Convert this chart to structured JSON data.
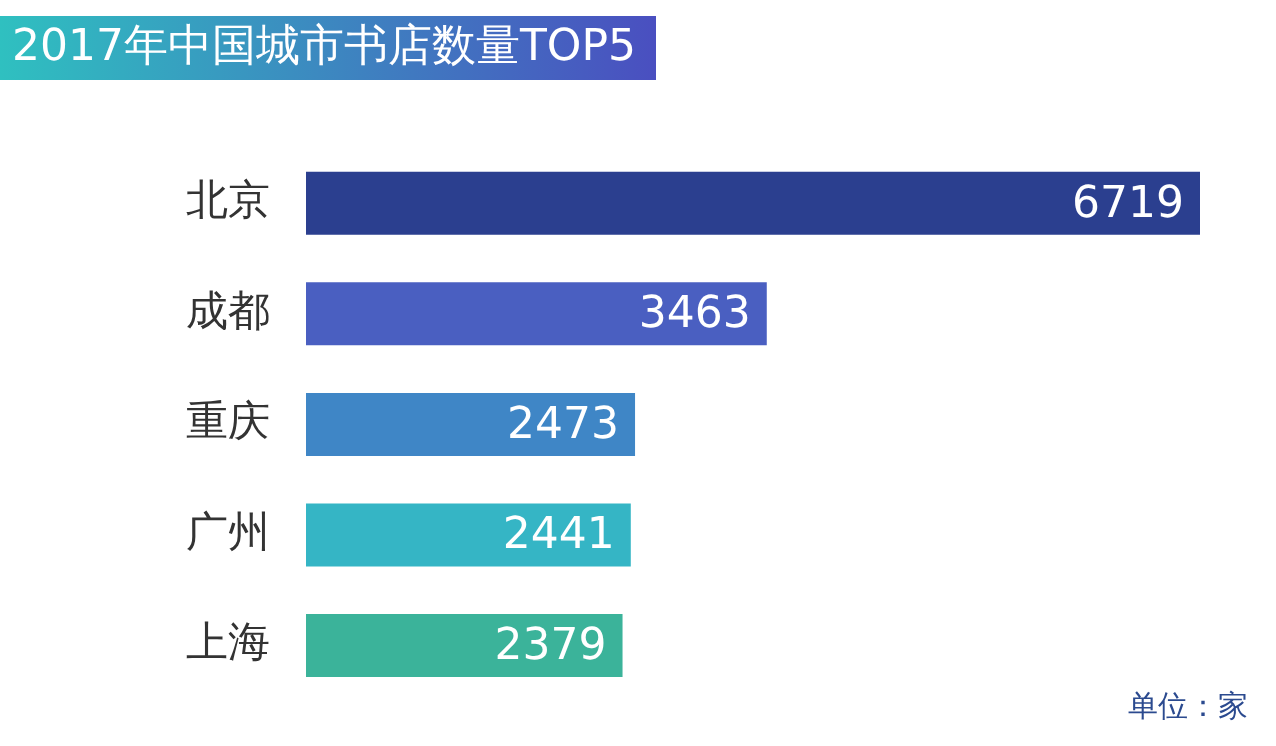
{
  "chart_data": {
    "type": "bar",
    "orientation": "horizontal",
    "title": "2017年中国城市书店数量TOP5",
    "categories": [
      "北京",
      "成都",
      "重庆",
      "广州",
      "上海"
    ],
    "values": [
      6719,
      3463,
      2473,
      2441,
      2379
    ],
    "colors": [
      "#2b3f8f",
      "#4a5fc1",
      "#3f86c6",
      "#35b5c5",
      "#3bb39a"
    ],
    "data_labels": true,
    "annotations": [
      "单位：家"
    ]
  }
}
